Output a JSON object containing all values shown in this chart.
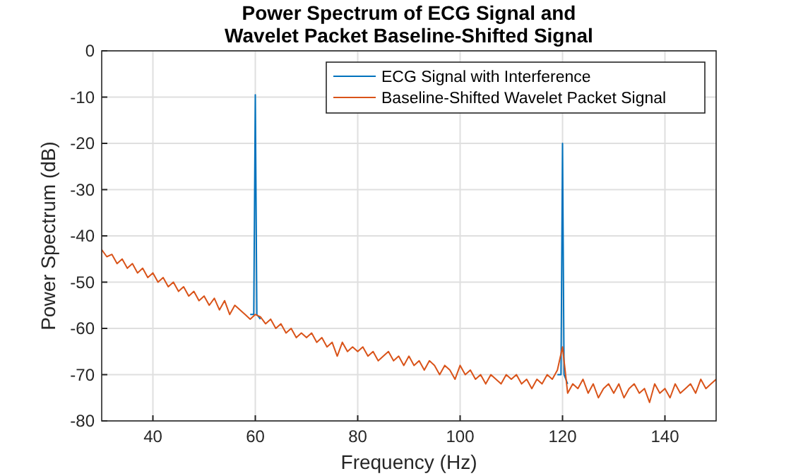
{
  "chart_data": {
    "type": "line",
    "title": "Power Spectrum of ECG Signal and\nWavelet Packet Baseline-Shifted Signal",
    "xlabel": "Frequency (Hz)",
    "ylabel": "Power Spectrum (dB)",
    "x": [
      30,
      31,
      32,
      33,
      34,
      35,
      36,
      37,
      38,
      39,
      40,
      41,
      42,
      43,
      44,
      45,
      46,
      47,
      48,
      49,
      50,
      51,
      52,
      53,
      54,
      55,
      56,
      57,
      58,
      59,
      60,
      61,
      62,
      63,
      64,
      65,
      66,
      67,
      68,
      69,
      70,
      71,
      72,
      73,
      74,
      75,
      76,
      77,
      78,
      79,
      80,
      81,
      82,
      83,
      84,
      85,
      86,
      87,
      88,
      89,
      90,
      91,
      92,
      93,
      94,
      95,
      96,
      97,
      98,
      99,
      100,
      101,
      102,
      103,
      104,
      105,
      106,
      107,
      108,
      109,
      110,
      111,
      112,
      113,
      114,
      115,
      116,
      117,
      118,
      119,
      120,
      121,
      122,
      123,
      124,
      125,
      126,
      127,
      128,
      129,
      130,
      131,
      132,
      133,
      134,
      135,
      136,
      137,
      138,
      139,
      140,
      141,
      142,
      143,
      144,
      145,
      146,
      147,
      148,
      149,
      150
    ],
    "series": [
      {
        "name": "ECG Signal with Interference",
        "color": "#0072bd",
        "x": [
          59,
          59.7,
          60,
          60.3,
          61,
          90,
          119,
          119.7,
          120,
          120.3,
          121
        ],
        "values": [
          -57,
          -57,
          -9.5,
          -57,
          -58,
          null,
          -70,
          -70,
          -20,
          -70,
          -72
        ]
      },
      {
        "name": "Baseline-Shifted Wavelet Packet Signal",
        "color": "#d95319",
        "values": [
          -43,
          -44.5,
          -44,
          -46,
          -45,
          -47,
          -46,
          -48,
          -47,
          -49,
          -48,
          -50,
          -49,
          -51,
          -50,
          -52,
          -51,
          -53,
          -52,
          -54,
          -53,
          -55,
          -53.5,
          -56,
          -54,
          -57,
          -55,
          -56,
          -57,
          -58,
          -57,
          -57.5,
          -59,
          -58,
          -60,
          -59,
          -61,
          -60,
          -62,
          -61,
          -62,
          -61,
          -63,
          -62,
          -64,
          -63,
          -66,
          -63,
          -65,
          -64,
          -65,
          -64,
          -66,
          -65,
          -67,
          -66,
          -65,
          -67,
          -66,
          -68,
          -66,
          -68,
          -67,
          -69,
          -67,
          -68,
          -70,
          -68,
          -69,
          -71,
          -68,
          -70,
          -69,
          -71,
          -70,
          -72,
          -70,
          -71,
          -72,
          -70,
          -71,
          -70,
          -72,
          -71,
          -73,
          -71,
          -72,
          -70,
          -71,
          -69,
          -64,
          -74,
          -72,
          -73,
          -71,
          -74,
          -72,
          -75,
          -73,
          -72,
          -74,
          -72,
          -75,
          -73,
          -72,
          -74,
          -73,
          -76,
          -72,
          -74,
          -73,
          -75,
          -72,
          -74,
          -73,
          -72,
          -74,
          -71,
          -73,
          -72,
          -71
        ]
      }
    ],
    "xlim": [
      30,
      150
    ],
    "xticks": [
      40,
      60,
      80,
      100,
      120,
      140
    ],
    "ylim": [
      -80,
      0
    ],
    "yticks": [
      -80,
      -70,
      -60,
      -50,
      -40,
      -30,
      -20,
      -10,
      0
    ],
    "grid": true,
    "legend": "top right",
    "line_style": "solid",
    "marker": "none"
  }
}
